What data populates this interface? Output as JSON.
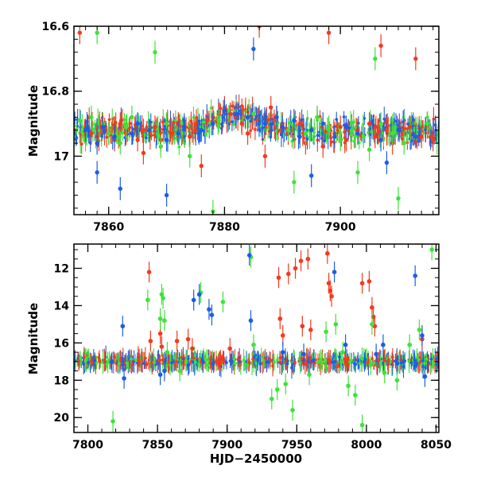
{
  "colors": {
    "red": "#f23a1f",
    "green": "#3ee33a",
    "blue": "#1b5ee6",
    "frame": "#000000"
  },
  "chart_data": [
    {
      "type": "scatter",
      "panel": "top",
      "xlabel": "",
      "ylabel": "Magnitude",
      "xlim": [
        7854,
        7917
      ],
      "ylim": [
        17.18,
        16.6
      ],
      "y_inverted": true,
      "grid": false,
      "xticks": [
        "7860",
        "7880",
        "7900"
      ],
      "yticks": [
        "16.6",
        "16.8",
        "17"
      ],
      "baseline_mag": 16.92,
      "series": [
        {
          "color": "red",
          "points": [
            [
              7854,
              16.92
            ],
            [
              7855,
              16.62
            ],
            [
              7857,
              16.93
            ],
            [
              7858,
              16.94
            ],
            [
              7860,
              16.93
            ],
            [
              7861,
              16.95
            ],
            [
              7862,
              16.9
            ],
            [
              7863,
              16.93
            ],
            [
              7865,
              16.95
            ],
            [
              7866,
              16.92
            ],
            [
              7868,
              16.91
            ],
            [
              7869,
              16.95
            ],
            [
              7871,
              16.93
            ],
            [
              7872,
              16.9
            ],
            [
              7874,
              16.94
            ],
            [
              7875,
              16.92
            ],
            [
              7877,
              16.89
            ],
            [
              7878,
              16.88
            ],
            [
              7879,
              16.87
            ],
            [
              7880,
              16.85
            ],
            [
              7881,
              16.87
            ],
            [
              7882,
              16.88
            ],
            [
              7883,
              16.9
            ],
            [
              7884,
              16.93
            ],
            [
              7886,
              16.6
            ],
            [
              7888,
              16.85
            ],
            [
              7889,
              16.88
            ],
            [
              7890,
              16.9
            ],
            [
              7891,
              16.93
            ],
            [
              7893,
              16.9
            ],
            [
              7894,
              16.96
            ],
            [
              7896,
              16.88
            ],
            [
              7897,
              16.97
            ],
            [
              7899,
              16.93
            ],
            [
              7900,
              16.91
            ],
            [
              7901,
              16.95
            ],
            [
              7903,
              16.92
            ],
            [
              7905,
              16.9
            ],
            [
              7906,
              16.94
            ],
            [
              7908,
              16.92
            ],
            [
              7909,
              16.96
            ],
            [
              7911,
              16.93
            ],
            [
              7912,
              16.91
            ],
            [
              7914,
              16.94
            ],
            [
              7915,
              16.9
            ],
            [
              7916,
              16.95
            ],
            [
              7866,
              16.99
            ],
            [
              7876,
              17.03
            ],
            [
              7887,
              17.0
            ],
            [
              7898,
              16.62
            ],
            [
              7907,
              16.66
            ],
            [
              7913,
              16.7
            ]
          ]
        },
        {
          "color": "green",
          "points": [
            [
              7855,
              16.89
            ],
            [
              7856,
              16.95
            ],
            [
              7857,
              16.88
            ],
            [
              7859,
              16.9
            ],
            [
              7860,
              16.93
            ],
            [
              7862,
              16.96
            ],
            [
              7863,
              16.91
            ],
            [
              7864,
              16.88
            ],
            [
              7867,
              16.92
            ],
            [
              7869,
              16.97
            ],
            [
              7870,
              16.9
            ],
            [
              7873,
              16.93
            ],
            [
              7874,
              17.0
            ],
            [
              7876,
              16.91
            ],
            [
              7879,
              16.89
            ],
            [
              7882,
              16.86
            ],
            [
              7885,
              16.87
            ],
            [
              7887,
              16.92
            ],
            [
              7889,
              16.9
            ],
            [
              7891,
              16.92
            ],
            [
              7894,
              16.93
            ],
            [
              7896,
              16.88
            ],
            [
              7898,
              16.91
            ],
            [
              7900,
              16.95
            ],
            [
              7902,
              16.92
            ],
            [
              7904,
              16.94
            ],
            [
              7905,
              16.98
            ],
            [
              7907,
              16.9
            ],
            [
              7909,
              16.93
            ],
            [
              7911,
              16.96
            ],
            [
              7913,
              16.92
            ],
            [
              7915,
              16.9
            ],
            [
              7858,
              16.62
            ],
            [
              7868,
              16.68
            ],
            [
              7878,
              17.17
            ],
            [
              7892,
              17.08
            ],
            [
              7903,
              17.05
            ],
            [
              7906,
              16.7
            ],
            [
              7910,
              17.13
            ]
          ]
        },
        {
          "color": "blue",
          "points": [
            [
              7854,
              16.93
            ],
            [
              7856,
              16.92
            ],
            [
              7858,
              16.96
            ],
            [
              7859,
              16.91
            ],
            [
              7861,
              16.94
            ],
            [
              7864,
              16.93
            ],
            [
              7865,
              16.9
            ],
            [
              7867,
              16.92
            ],
            [
              7870,
              16.95
            ],
            [
              7872,
              16.93
            ],
            [
              7873,
              16.91
            ],
            [
              7876,
              16.92
            ],
            [
              7878,
              16.9
            ],
            [
              7880,
              16.86
            ],
            [
              7882,
              16.87
            ],
            [
              7884,
              16.88
            ],
            [
              7887,
              16.9
            ],
            [
              7889,
              16.88
            ],
            [
              7890,
              16.91
            ],
            [
              7892,
              16.89
            ],
            [
              7893,
              16.94
            ],
            [
              7895,
              16.92
            ],
            [
              7897,
              16.9
            ],
            [
              7899,
              16.94
            ],
            [
              7901,
              16.91
            ],
            [
              7903,
              16.93
            ],
            [
              7907,
              16.95
            ],
            [
              7910,
              16.92
            ],
            [
              7913,
              16.94
            ],
            [
              7858,
              17.05
            ],
            [
              7862,
              17.1
            ],
            [
              7870,
              17.12
            ],
            [
              7885,
              16.67
            ],
            [
              7895,
              17.06
            ],
            [
              7908,
              17.02
            ]
          ]
        }
      ]
    },
    {
      "type": "scatter",
      "panel": "bottom",
      "xlabel": "HJD−2450000",
      "ylabel": "Magnitude",
      "xlim": [
        7790,
        8052
      ],
      "ylim": [
        20.8,
        10.7
      ],
      "y_inverted": true,
      "grid": false,
      "xticks": [
        "7800",
        "7850",
        "7900",
        "7950",
        "8000",
        "8050"
      ],
      "yticks": [
        "12",
        "14",
        "16",
        "18",
        "20"
      ],
      "baseline_mag": 17.0,
      "series": [
        {
          "color": "red",
          "points": [
            [
              7844,
              12.2
            ],
            [
              7845,
              15.9
            ],
            [
              7852,
              15.5
            ],
            [
              7853,
              16.2
            ],
            [
              7864,
              15.9
            ],
            [
              7872,
              15.8
            ],
            [
              7875,
              16.3
            ],
            [
              7902,
              16.3
            ],
            [
              7937,
              12.5
            ],
            [
              7938,
              14.7
            ],
            [
              7940,
              15.6
            ],
            [
              7944,
              12.3
            ],
            [
              7949,
              12.0
            ],
            [
              7953,
              11.6
            ],
            [
              7954,
              15.1
            ],
            [
              7958,
              11.5
            ],
            [
              7960,
              15.3
            ],
            [
              7972,
              11.2
            ],
            [
              7973,
              12.8
            ],
            [
              7974,
              13.2
            ],
            [
              7975,
              13.5
            ],
            [
              7997,
              12.8
            ],
            [
              8002,
              12.7
            ],
            [
              8004,
              14.1
            ],
            [
              8005,
              14.6
            ],
            [
              8006,
              15.1
            ],
            [
              8040,
              15.8
            ]
          ]
        },
        {
          "color": "green",
          "points": [
            [
              7818,
              20.2
            ],
            [
              7843,
              13.7
            ],
            [
              7853,
              13.4
            ],
            [
              7854,
              13.6
            ],
            [
              7852,
              14.7
            ],
            [
              7855,
              14.8
            ],
            [
              7857,
              16.5
            ],
            [
              7866,
              17.5
            ],
            [
              7881,
              13.3
            ],
            [
              7897,
              13.8
            ],
            [
              7917,
              11.4
            ],
            [
              7919,
              16.1
            ],
            [
              7932,
              19.0
            ],
            [
              7936,
              18.5
            ],
            [
              7942,
              18.2
            ],
            [
              7947,
              19.6
            ],
            [
              7959,
              17.7
            ],
            [
              7971,
              15.4
            ],
            [
              7978,
              15.0
            ],
            [
              7983,
              16.5
            ],
            [
              7987,
              18.3
            ],
            [
              7992,
              18.8
            ],
            [
              7997,
              20.4
            ],
            [
              8004,
              15.0
            ],
            [
              8013,
              17.6
            ],
            [
              8022,
              18.0
            ],
            [
              8031,
              16.1
            ],
            [
              8038,
              15.3
            ],
            [
              8047,
              11.0
            ]
          ]
        },
        {
          "color": "blue",
          "points": [
            [
              7825,
              15.1
            ],
            [
              7826,
              17.9
            ],
            [
              7852,
              17.7
            ],
            [
              7855,
              17.5
            ],
            [
              7876,
              13.7
            ],
            [
              7880,
              13.4
            ],
            [
              7887,
              14.2
            ],
            [
              7889,
              14.5
            ],
            [
              7916,
              11.3
            ],
            [
              7917,
              14.8
            ],
            [
              7940,
              16.5
            ],
            [
              7955,
              16.6
            ],
            [
              7977,
              12.2
            ],
            [
              7985,
              16.1
            ],
            [
              8007,
              16.6
            ],
            [
              8012,
              16.1
            ],
            [
              8022,
              17.1
            ],
            [
              8035,
              12.4
            ],
            [
              8040,
              15.6
            ],
            [
              8042,
              17.8
            ]
          ]
        }
      ]
    }
  ]
}
